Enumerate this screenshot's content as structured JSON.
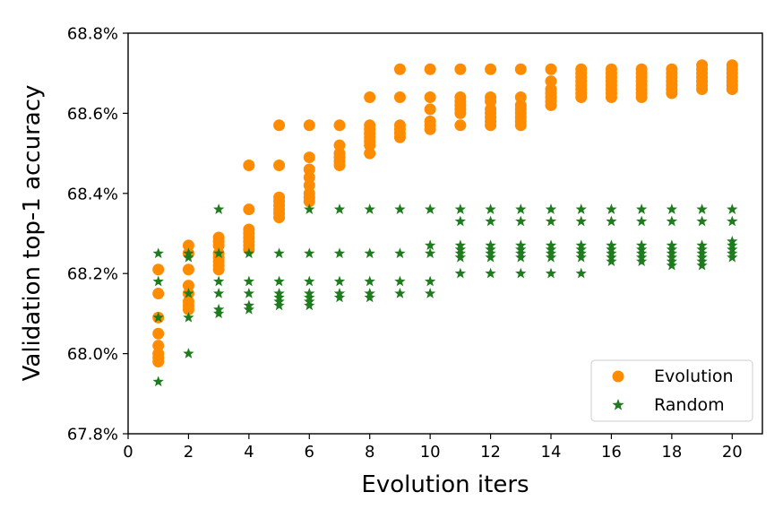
{
  "chart_data": {
    "type": "scatter",
    "title": "",
    "xlabel": "Evolution iters",
    "ylabel": "Validation top-1 accuracy",
    "xlim": [
      0,
      21
    ],
    "ylim": [
      67.8,
      68.8
    ],
    "xticks": [
      0,
      2,
      4,
      6,
      8,
      10,
      12,
      14,
      16,
      18,
      20
    ],
    "xtick_labels": [
      "0",
      "2",
      "4",
      "6",
      "8",
      "10",
      "12",
      "14",
      "16",
      "18",
      "20"
    ],
    "yticks": [
      67.8,
      68.0,
      68.2,
      68.4,
      68.6,
      68.8
    ],
    "ytick_labels": [
      "67.8%",
      "68.0%",
      "68.2%",
      "68.4%",
      "68.6%",
      "68.8%"
    ],
    "grid": false,
    "legend_position": "bottom-right",
    "series": [
      {
        "name": "Evolution",
        "marker": "circle",
        "color": "#ff8c00",
        "points": [
          [
            1,
            67.98
          ],
          [
            1,
            67.99
          ],
          [
            1,
            68.0
          ],
          [
            1,
            68.02
          ],
          [
            1,
            68.05
          ],
          [
            1,
            68.09
          ],
          [
            1,
            68.15
          ],
          [
            1,
            68.21
          ],
          [
            2,
            68.11
          ],
          [
            2,
            68.12
          ],
          [
            2,
            68.13
          ],
          [
            2,
            68.15
          ],
          [
            2,
            68.17
          ],
          [
            2,
            68.21
          ],
          [
            2,
            68.25
          ],
          [
            2,
            68.27
          ],
          [
            3,
            68.21
          ],
          [
            3,
            68.22
          ],
          [
            3,
            68.23
          ],
          [
            3,
            68.24
          ],
          [
            3,
            68.25
          ],
          [
            3,
            68.27
          ],
          [
            3,
            68.28
          ],
          [
            3,
            68.29
          ],
          [
            4,
            68.26
          ],
          [
            4,
            68.27
          ],
          [
            4,
            68.28
          ],
          [
            4,
            68.29
          ],
          [
            4,
            68.3
          ],
          [
            4,
            68.31
          ],
          [
            4,
            68.36
          ],
          [
            4,
            68.47
          ],
          [
            5,
            68.34
          ],
          [
            5,
            68.35
          ],
          [
            5,
            68.36
          ],
          [
            5,
            68.37
          ],
          [
            5,
            68.38
          ],
          [
            5,
            68.39
          ],
          [
            5,
            68.47
          ],
          [
            5,
            68.57
          ],
          [
            6,
            68.38
          ],
          [
            6,
            68.39
          ],
          [
            6,
            68.4
          ],
          [
            6,
            68.42
          ],
          [
            6,
            68.44
          ],
          [
            6,
            68.46
          ],
          [
            6,
            68.49
          ],
          [
            6,
            68.57
          ],
          [
            7,
            68.47
          ],
          [
            7,
            68.48
          ],
          [
            7,
            68.49
          ],
          [
            7,
            68.5
          ],
          [
            7,
            68.52
          ],
          [
            7,
            68.57
          ],
          [
            8,
            68.5
          ],
          [
            8,
            68.52
          ],
          [
            8,
            68.53
          ],
          [
            8,
            68.54
          ],
          [
            8,
            68.55
          ],
          [
            8,
            68.56
          ],
          [
            8,
            68.57
          ],
          [
            8,
            68.64
          ],
          [
            9,
            68.54
          ],
          [
            9,
            68.55
          ],
          [
            9,
            68.56
          ],
          [
            9,
            68.57
          ],
          [
            9,
            68.64
          ],
          [
            9,
            68.71
          ],
          [
            10,
            68.56
          ],
          [
            10,
            68.57
          ],
          [
            10,
            68.58
          ],
          [
            10,
            68.61
          ],
          [
            10,
            68.64
          ],
          [
            10,
            68.71
          ],
          [
            11,
            68.57
          ],
          [
            11,
            68.6
          ],
          [
            11,
            68.61
          ],
          [
            11,
            68.62
          ],
          [
            11,
            68.63
          ],
          [
            11,
            68.64
          ],
          [
            11,
            68.71
          ],
          [
            12,
            68.57
          ],
          [
            12,
            68.58
          ],
          [
            12,
            68.59
          ],
          [
            12,
            68.6
          ],
          [
            12,
            68.61
          ],
          [
            12,
            68.63
          ],
          [
            12,
            68.64
          ],
          [
            12,
            68.71
          ],
          [
            13,
            68.57
          ],
          [
            13,
            68.58
          ],
          [
            13,
            68.59
          ],
          [
            13,
            68.6
          ],
          [
            13,
            68.61
          ],
          [
            13,
            68.62
          ],
          [
            13,
            68.64
          ],
          [
            13,
            68.71
          ],
          [
            14,
            68.62
          ],
          [
            14,
            68.63
          ],
          [
            14,
            68.64
          ],
          [
            14,
            68.65
          ],
          [
            14,
            68.66
          ],
          [
            14,
            68.68
          ],
          [
            14,
            68.71
          ],
          [
            15,
            68.64
          ],
          [
            15,
            68.65
          ],
          [
            15,
            68.66
          ],
          [
            15,
            68.67
          ],
          [
            15,
            68.68
          ],
          [
            15,
            68.69
          ],
          [
            15,
            68.7
          ],
          [
            15,
            68.71
          ],
          [
            16,
            68.64
          ],
          [
            16,
            68.65
          ],
          [
            16,
            68.66
          ],
          [
            16,
            68.67
          ],
          [
            16,
            68.68
          ],
          [
            16,
            68.69
          ],
          [
            16,
            68.7
          ],
          [
            16,
            68.71
          ],
          [
            17,
            68.64
          ],
          [
            17,
            68.65
          ],
          [
            17,
            68.66
          ],
          [
            17,
            68.67
          ],
          [
            17,
            68.68
          ],
          [
            17,
            68.69
          ],
          [
            17,
            68.7
          ],
          [
            17,
            68.71
          ],
          [
            18,
            68.65
          ],
          [
            18,
            68.66
          ],
          [
            18,
            68.67
          ],
          [
            18,
            68.68
          ],
          [
            18,
            68.69
          ],
          [
            18,
            68.7
          ],
          [
            18,
            68.71
          ],
          [
            19,
            68.66
          ],
          [
            19,
            68.67
          ],
          [
            19,
            68.68
          ],
          [
            19,
            68.69
          ],
          [
            19,
            68.7
          ],
          [
            19,
            68.71
          ],
          [
            19,
            68.72
          ],
          [
            20,
            68.66
          ],
          [
            20,
            68.67
          ],
          [
            20,
            68.68
          ],
          [
            20,
            68.69
          ],
          [
            20,
            68.7
          ],
          [
            20,
            68.71
          ],
          [
            20,
            68.72
          ]
        ]
      },
      {
        "name": "Random",
        "marker": "star",
        "color": "#1e7b1e",
        "points": [
          [
            1,
            67.93
          ],
          [
            1,
            68.09
          ],
          [
            1,
            68.18
          ],
          [
            1,
            68.25
          ],
          [
            2,
            68.0
          ],
          [
            2,
            68.09
          ],
          [
            2,
            68.15
          ],
          [
            2,
            68.24
          ],
          [
            2,
            68.25
          ],
          [
            3,
            68.1
          ],
          [
            3,
            68.11
          ],
          [
            3,
            68.15
          ],
          [
            3,
            68.18
          ],
          [
            3,
            68.25
          ],
          [
            3,
            68.36
          ],
          [
            4,
            68.11
          ],
          [
            4,
            68.12
          ],
          [
            4,
            68.15
          ],
          [
            4,
            68.18
          ],
          [
            4,
            68.25
          ],
          [
            5,
            68.12
          ],
          [
            5,
            68.13
          ],
          [
            5,
            68.14
          ],
          [
            5,
            68.15
          ],
          [
            5,
            68.18
          ],
          [
            5,
            68.25
          ],
          [
            6,
            68.12
          ],
          [
            6,
            68.13
          ],
          [
            6,
            68.14
          ],
          [
            6,
            68.15
          ],
          [
            6,
            68.18
          ],
          [
            6,
            68.25
          ],
          [
            6,
            68.36
          ],
          [
            7,
            68.14
          ],
          [
            7,
            68.15
          ],
          [
            7,
            68.18
          ],
          [
            7,
            68.25
          ],
          [
            7,
            68.36
          ],
          [
            8,
            68.14
          ],
          [
            8,
            68.15
          ],
          [
            8,
            68.18
          ],
          [
            8,
            68.25
          ],
          [
            8,
            68.36
          ],
          [
            9,
            68.15
          ],
          [
            9,
            68.18
          ],
          [
            9,
            68.25
          ],
          [
            9,
            68.36
          ],
          [
            10,
            68.15
          ],
          [
            10,
            68.18
          ],
          [
            10,
            68.25
          ],
          [
            10,
            68.27
          ],
          [
            10,
            68.36
          ],
          [
            11,
            68.2
          ],
          [
            11,
            68.24
          ],
          [
            11,
            68.25
          ],
          [
            11,
            68.26
          ],
          [
            11,
            68.27
          ],
          [
            11,
            68.33
          ],
          [
            11,
            68.36
          ],
          [
            12,
            68.2
          ],
          [
            12,
            68.24
          ],
          [
            12,
            68.25
          ],
          [
            12,
            68.26
          ],
          [
            12,
            68.27
          ],
          [
            12,
            68.33
          ],
          [
            12,
            68.36
          ],
          [
            13,
            68.2
          ],
          [
            13,
            68.24
          ],
          [
            13,
            68.25
          ],
          [
            13,
            68.26
          ],
          [
            13,
            68.27
          ],
          [
            13,
            68.33
          ],
          [
            13,
            68.36
          ],
          [
            14,
            68.2
          ],
          [
            14,
            68.24
          ],
          [
            14,
            68.25
          ],
          [
            14,
            68.26
          ],
          [
            14,
            68.27
          ],
          [
            14,
            68.33
          ],
          [
            14,
            68.36
          ],
          [
            15,
            68.2
          ],
          [
            15,
            68.24
          ],
          [
            15,
            68.25
          ],
          [
            15,
            68.26
          ],
          [
            15,
            68.27
          ],
          [
            15,
            68.33
          ],
          [
            15,
            68.36
          ],
          [
            16,
            68.23
          ],
          [
            16,
            68.24
          ],
          [
            16,
            68.25
          ],
          [
            16,
            68.26
          ],
          [
            16,
            68.27
          ],
          [
            16,
            68.33
          ],
          [
            16,
            68.36
          ],
          [
            17,
            68.23
          ],
          [
            17,
            68.24
          ],
          [
            17,
            68.25
          ],
          [
            17,
            68.26
          ],
          [
            17,
            68.27
          ],
          [
            17,
            68.33
          ],
          [
            17,
            68.36
          ],
          [
            18,
            68.22
          ],
          [
            18,
            68.23
          ],
          [
            18,
            68.24
          ],
          [
            18,
            68.25
          ],
          [
            18,
            68.26
          ],
          [
            18,
            68.27
          ],
          [
            18,
            68.33
          ],
          [
            18,
            68.36
          ],
          [
            19,
            68.22
          ],
          [
            19,
            68.23
          ],
          [
            19,
            68.24
          ],
          [
            19,
            68.25
          ],
          [
            19,
            68.26
          ],
          [
            19,
            68.27
          ],
          [
            19,
            68.33
          ],
          [
            19,
            68.36
          ],
          [
            20,
            68.24
          ],
          [
            20,
            68.25
          ],
          [
            20,
            68.26
          ],
          [
            20,
            68.27
          ],
          [
            20,
            68.28
          ],
          [
            20,
            68.33
          ],
          [
            20,
            68.36
          ]
        ]
      }
    ]
  }
}
